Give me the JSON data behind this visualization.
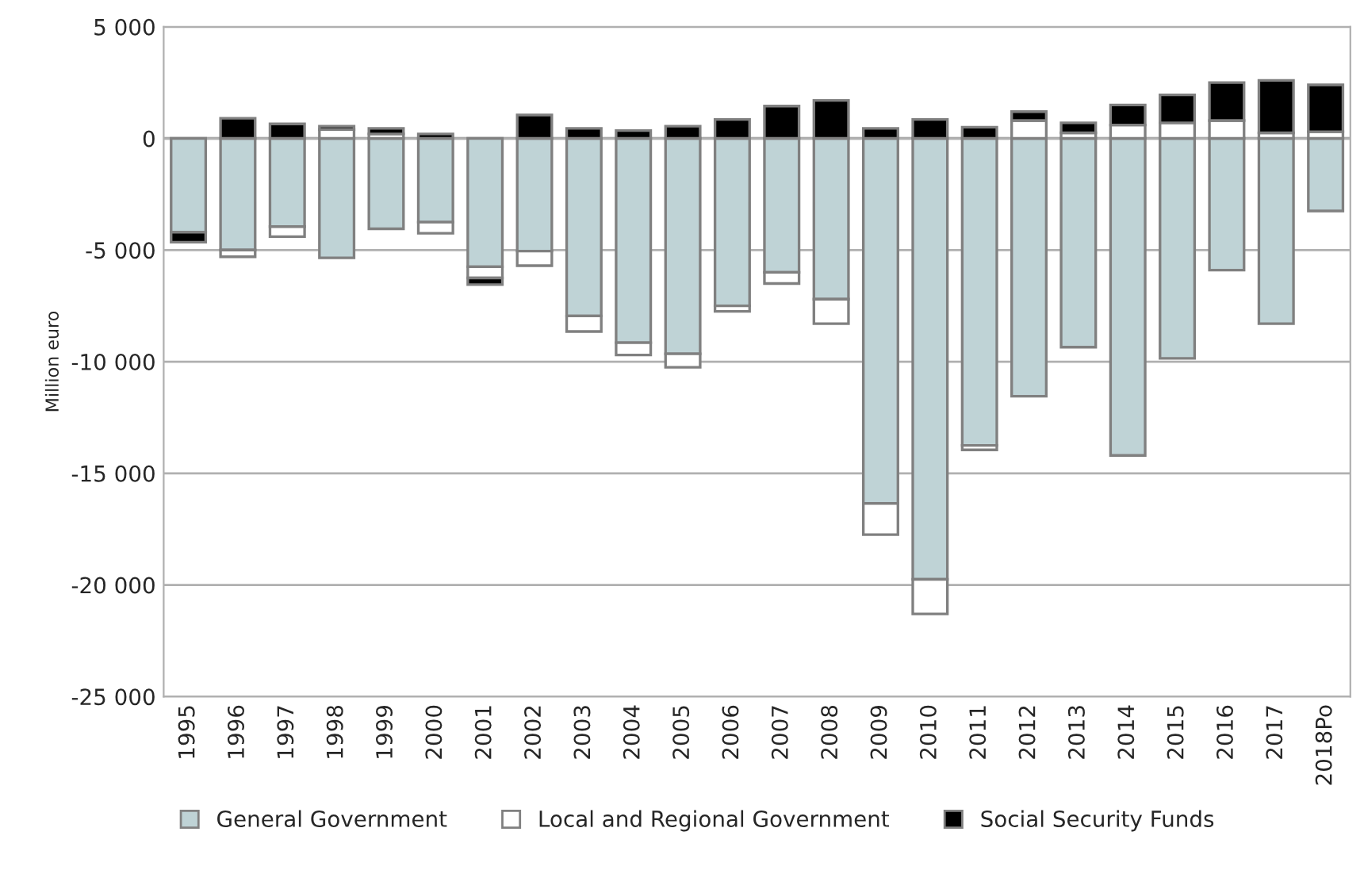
{
  "chart_data": {
    "type": "bar",
    "stacked": true,
    "ylabel": "Million euro",
    "categories": [
      "1995",
      "1996",
      "1997",
      "1998",
      "1999",
      "2000",
      "2001",
      "2002",
      "2003",
      "2004",
      "2005",
      "2006",
      "2007",
      "2008",
      "2009",
      "2010",
      "2011",
      "2012",
      "2013",
      "2014",
      "2015",
      "2016",
      "2017",
      "2018Po"
    ],
    "series": [
      {
        "name": "General Government",
        "color": "#bfd3d6",
        "values": [
          -4200,
          -5000,
          -3950,
          -5350,
          -4050,
          -3750,
          -5750,
          -5050,
          -7950,
          -9150,
          -9650,
          -7500,
          -6000,
          -7200,
          -16350,
          -19750,
          -13750,
          -11550,
          -9350,
          -14200,
          -9850,
          -5900,
          -8300,
          -3250
        ]
      },
      {
        "name": "Local and Regional Government",
        "color": "#ffffff",
        "values": [
          null,
          -300,
          -450,
          400,
          200,
          -500,
          -500,
          -650,
          -700,
          -550,
          -600,
          -250,
          -500,
          -1100,
          -1400,
          -1550,
          -200,
          800,
          250,
          600,
          700,
          800,
          250,
          300
        ]
      },
      {
        "name": "Social Security Funds",
        "color": "#000000",
        "values": [
          -450,
          900,
          650,
          150,
          250,
          200,
          -300,
          1050,
          450,
          350,
          550,
          850,
          1450,
          1700,
          450,
          850,
          500,
          400,
          450,
          900,
          1250,
          1700,
          2350,
          2100
        ]
      }
    ],
    "ylim": [
      -25000,
      5000
    ],
    "yticks": [
      {
        "value": -25000,
        "label": "-25 000"
      },
      {
        "value": -20000,
        "label": "-20 000"
      },
      {
        "value": -15000,
        "label": "-15 000"
      },
      {
        "value": -10000,
        "label": "-10 000"
      },
      {
        "value": -5000,
        "label": "-5 000"
      },
      {
        "value": 0,
        "label": "0"
      },
      {
        "value": 5000,
        "label": "5 000"
      }
    ],
    "grid": "y",
    "legend": "bottom"
  }
}
